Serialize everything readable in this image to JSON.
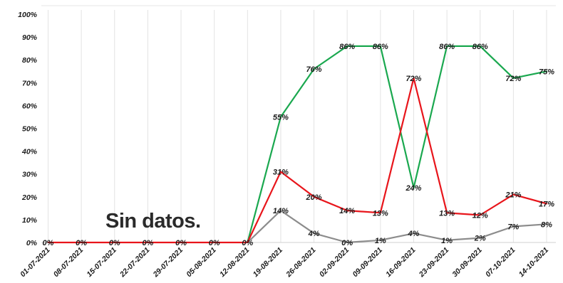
{
  "chart_data": {
    "type": "line",
    "categories": [
      "01-07-2021",
      "08-07-2021",
      "15-07-2021",
      "22-07-2021",
      "29-07-2021",
      "05-08-2021",
      "12-08-2021",
      "19-08-2021",
      "26-08-2021",
      "02-09-2021",
      "09-09-2021",
      "16-09-2021",
      "23-09-2021",
      "30-09-2021",
      "07-10-2021",
      "14-10-2021"
    ],
    "ylim": [
      0,
      100
    ],
    "yticks": [
      "0%",
      "10%",
      "20%",
      "30%",
      "40%",
      "50%",
      "60%",
      "70%",
      "80%",
      "90%",
      "100%"
    ],
    "grid": "vertical",
    "annotation": "Sin datos.",
    "series": [
      {
        "color": "#1aa84f",
        "values": [
          null,
          null,
          null,
          null,
          null,
          null,
          0,
          55,
          76,
          86,
          86,
          24,
          86,
          86,
          72,
          75
        ],
        "labels": [
          "",
          "",
          "",
          "",
          "",
          "",
          "",
          "55%",
          "76%",
          "86%",
          "86%",
          "24%",
          "86%",
          "86%",
          "72%",
          "75%"
        ]
      },
      {
        "color": "#e8151b",
        "values": [
          0,
          0,
          0,
          0,
          0,
          0,
          0,
          31,
          20,
          14,
          13,
          72,
          13,
          12,
          21,
          17
        ],
        "labels": [
          "0%",
          "0%",
          "0%",
          "0%",
          "0%",
          "0%",
          "0%",
          "31%",
          "20%",
          "14%",
          "13%",
          "72%",
          "13%",
          "12%",
          "21%",
          "17%"
        ]
      },
      {
        "color": "#8c8c8c",
        "values": [
          null,
          null,
          null,
          null,
          null,
          null,
          0,
          14,
          4,
          0,
          1,
          4,
          1,
          2,
          7,
          8
        ],
        "labels": [
          "",
          "",
          "",
          "",
          "",
          "",
          "",
          "14%",
          "4%",
          "0%",
          "1%",
          "4%",
          "1%",
          "2%",
          "7%",
          "8%"
        ]
      }
    ]
  }
}
